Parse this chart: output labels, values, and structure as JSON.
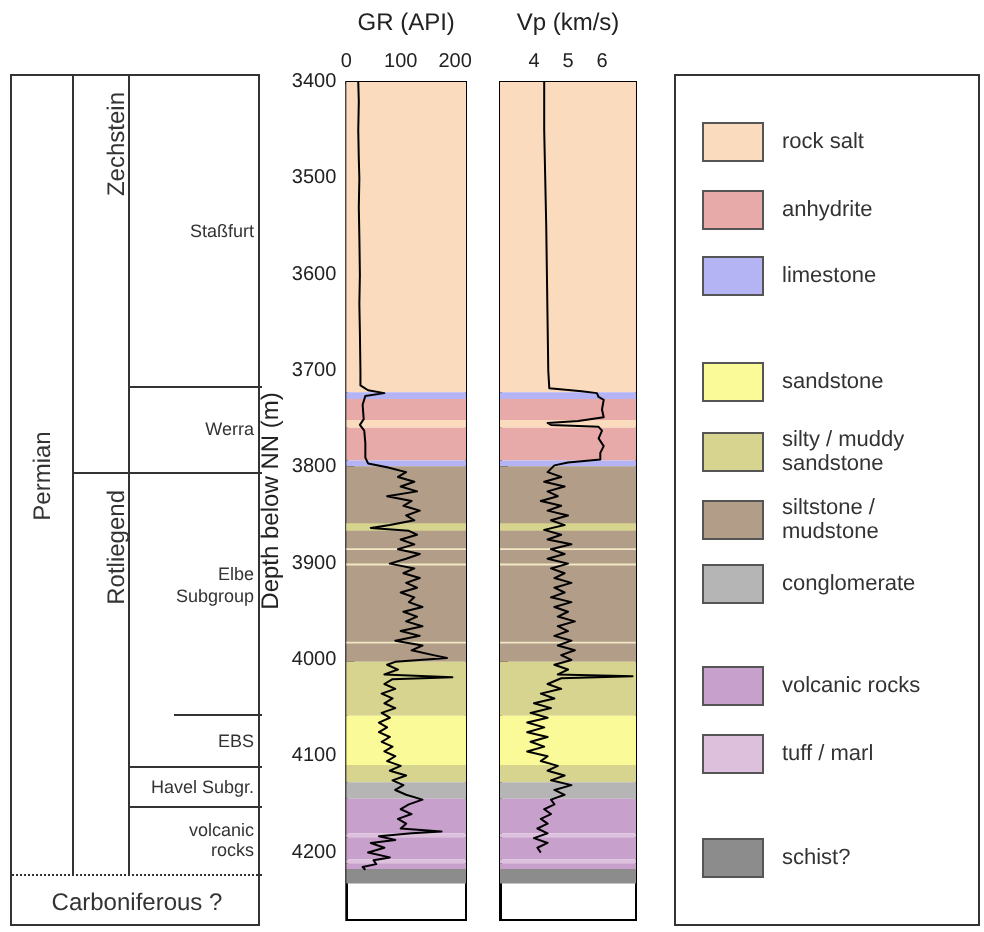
{
  "chart_data": [
    {
      "type": "other",
      "annotations": [
        "Permian",
        "Zechstein",
        "Rotliegend",
        "Staßfurt",
        "Werra",
        "Elbe\nSubgroup",
        "EBS",
        "Havel Subgr.",
        "volcanic\nrocks",
        "Carboniferous ?"
      ]
    },
    {
      "type": "line",
      "orientation": "horizontal",
      "xlabel": "GR (API)",
      "ylabel": "Depth below NN (m)",
      "xlim": [
        0,
        220
      ],
      "xticks": [
        0,
        100,
        200
      ],
      "ylim": [
        4270,
        3400
      ],
      "yticks": [
        3400,
        3500,
        3600,
        3700,
        3800,
        3900,
        4000,
        4100,
        4200
      ],
      "series": [
        {
          "color": "#000000",
          "x": [
            3400,
            3420,
            3450,
            3480,
            3500,
            3530,
            3560,
            3600,
            3630,
            3660,
            3700,
            3715,
            3720,
            3723,
            3726,
            3735,
            3750,
            3756,
            3762,
            3775,
            3790,
            3796,
            3800,
            3805,
            3810,
            3815,
            3820,
            3825,
            3830,
            3835,
            3840,
            3845,
            3850,
            3855,
            3860,
            3863,
            3866,
            3870,
            3875,
            3880,
            3885,
            3890,
            3895,
            3900,
            3905,
            3910,
            3915,
            3920,
            3925,
            3930,
            3935,
            3940,
            3945,
            3950,
            3955,
            3960,
            3965,
            3970,
            3975,
            3980,
            3985,
            3990,
            3995,
            3998,
            4002,
            4005,
            4010,
            4015,
            4018,
            4020,
            4025,
            4030,
            4035,
            4040,
            4045,
            4050,
            4055,
            4060,
            4065,
            4070,
            4075,
            4080,
            4085,
            4090,
            4095,
            4100,
            4105,
            4110,
            4115,
            4120,
            4125,
            4130,
            4135,
            4140,
            4145,
            4150,
            4155,
            4160,
            4165,
            4170,
            4175,
            4178,
            4180,
            4183,
            4187,
            4190,
            4195,
            4200,
            4205,
            4208,
            4212,
            4215,
            4218
          ],
          "values": [
            22,
            23,
            22,
            23,
            24,
            23,
            24,
            25,
            24,
            25,
            26,
            26,
            40,
            70,
            35,
            30,
            32,
            25,
            33,
            35,
            35,
            40,
            75,
            110,
            95,
            125,
            100,
            130,
            75,
            120,
            105,
            135,
            110,
            125,
            80,
            45,
            115,
            130,
            100,
            125,
            95,
            135,
            110,
            80,
            125,
            105,
            135,
            110,
            130,
            100,
            125,
            115,
            140,
            105,
            130,
            110,
            140,
            100,
            135,
            90,
            140,
            120,
            160,
            185,
            90,
            75,
            95,
            70,
            195,
            85,
            70,
            90,
            65,
            85,
            70,
            90,
            65,
            80,
            60,
            75,
            60,
            80,
            65,
            85,
            70,
            90,
            75,
            100,
            80,
            110,
            85,
            105,
            90,
            110,
            140,
            115,
            100,
            120,
            95,
            110,
            100,
            175,
            120,
            60,
            90,
            45,
            70,
            40,
            80,
            50,
            55,
            30,
            35
          ]
        }
      ],
      "bands": [
        {
          "axis": "y",
          "from": 3400,
          "to": 3722,
          "color": "#fbdbbd"
        },
        {
          "axis": "y",
          "from": 3722,
          "to": 3729,
          "color": "#b4b4f4"
        },
        {
          "axis": "y",
          "from": 3729,
          "to": 3751,
          "color": "#e8aaa8"
        },
        {
          "axis": "y",
          "from": 3751,
          "to": 3759,
          "color": "#fbdbbd"
        },
        {
          "axis": "y",
          "from": 3759,
          "to": 3793,
          "color": "#e8aaa8"
        },
        {
          "axis": "y",
          "from": 3793,
          "to": 3799,
          "color": "#b4b4f4"
        },
        {
          "axis": "y",
          "from": 3799,
          "to": 4002,
          "color": "#b19d88"
        },
        {
          "axis": "y",
          "from": 3858,
          "to": 3866,
          "color": "#d6d48e"
        },
        {
          "axis": "y",
          "from": 3884,
          "to": 3886,
          "color": "#f2e9c4"
        },
        {
          "axis": "y",
          "from": 3900,
          "to": 3902,
          "color": "#f2e9c4"
        },
        {
          "axis": "y",
          "from": 3981,
          "to": 3983,
          "color": "#f2e9c4"
        },
        {
          "axis": "y",
          "from": 4002,
          "to": 4058,
          "color": "#d6d48e"
        },
        {
          "axis": "y",
          "from": 4058,
          "to": 4109,
          "color": "#fafa99"
        },
        {
          "axis": "y",
          "from": 4109,
          "to": 4127,
          "color": "#d6d48e"
        },
        {
          "axis": "y",
          "from": 4127,
          "to": 4144,
          "color": "#b5b5b5"
        },
        {
          "axis": "y",
          "from": 4144,
          "to": 4180,
          "color": "#c8a0cc"
        },
        {
          "axis": "y",
          "from": 4180,
          "to": 4184,
          "color": "#dcc0dc"
        },
        {
          "axis": "y",
          "from": 4184,
          "to": 4207,
          "color": "#c8a0cc"
        },
        {
          "axis": "y",
          "from": 4207,
          "to": 4211,
          "color": "#dcc0dc"
        },
        {
          "axis": "y",
          "from": 4211,
          "to": 4217,
          "color": "#c8a0cc"
        },
        {
          "axis": "y",
          "from": 4217,
          "to": 4232,
          "color": "#8c8c8c"
        }
      ]
    },
    {
      "type": "line",
      "orientation": "horizontal",
      "xlabel": "Vp (km/s)",
      "xlim": [
        3,
        7
      ],
      "xticks": [
        4,
        5,
        6
      ],
      "ylim": [
        4270,
        3400
      ],
      "yticks": [
        3400,
        3500,
        3600,
        3700,
        3800,
        3900,
        4000,
        4100,
        4200
      ],
      "tick_labels": "x",
      "series": [
        {
          "color": "#000000",
          "x": [
            3400,
            3450,
            3500,
            3550,
            3600,
            3650,
            3700,
            3718,
            3721,
            3723,
            3727,
            3730,
            3740,
            3748,
            3752,
            3754,
            3756,
            3758,
            3762,
            3770,
            3778,
            3785,
            3792,
            3795,
            3798,
            3805,
            3810,
            3815,
            3820,
            3825,
            3830,
            3835,
            3840,
            3845,
            3850,
            3855,
            3860,
            3865,
            3870,
            3875,
            3880,
            3885,
            3890,
            3895,
            3900,
            3905,
            3910,
            3915,
            3920,
            3925,
            3930,
            3935,
            3940,
            3945,
            3950,
            3955,
            3960,
            3965,
            3970,
            3975,
            3980,
            3985,
            3990,
            3995,
            4000,
            4005,
            4010,
            4015,
            4017,
            4019,
            4025,
            4030,
            4035,
            4040,
            4045,
            4050,
            4055,
            4060,
            4065,
            4070,
            4075,
            4080,
            4085,
            4090,
            4095,
            4100,
            4105,
            4110,
            4115,
            4120,
            4125,
            4130,
            4135,
            4140,
            4145,
            4150,
            4155,
            4160,
            4165,
            4170,
            4175,
            4180,
            4185,
            4190,
            4195,
            4200
          ],
          "values": [
            4.3,
            4.3,
            4.33,
            4.36,
            4.38,
            4.4,
            4.42,
            4.45,
            5.4,
            5.85,
            5.9,
            6.05,
            6.0,
            6.05,
            5.3,
            4.4,
            4.5,
            5.9,
            6.0,
            5.9,
            6.05,
            5.95,
            5.95,
            5.0,
            4.6,
            4.4,
            4.8,
            4.3,
            4.9,
            4.4,
            4.7,
            4.2,
            4.8,
            4.4,
            5.0,
            4.5,
            4.9,
            4.3,
            4.8,
            4.4,
            5.1,
            4.5,
            4.9,
            4.4,
            5.0,
            4.5,
            4.9,
            4.6,
            5.1,
            4.6,
            4.9,
            4.5,
            5.1,
            4.6,
            5.0,
            4.7,
            5.2,
            4.7,
            5.0,
            4.6,
            5.1,
            4.7,
            5.2,
            4.8,
            5.1,
            4.6,
            5.0,
            4.7,
            6.9,
            4.8,
            4.4,
            4.8,
            4.2,
            4.6,
            4.0,
            4.5,
            3.9,
            4.4,
            3.8,
            4.3,
            3.8,
            4.4,
            3.9,
            4.3,
            3.8,
            4.4,
            4.2,
            4.7,
            4.4,
            4.9,
            4.5,
            5.1,
            4.6,
            4.9,
            4.5,
            4.6,
            4.3,
            4.5,
            4.2,
            4.4,
            4.1,
            4.4,
            4.0,
            4.4,
            4.1,
            4.2
          ]
        }
      ],
      "bands": [
        {
          "axis": "y",
          "from": 3400,
          "to": 3722,
          "color": "#fbdbbd"
        },
        {
          "axis": "y",
          "from": 3722,
          "to": 3729,
          "color": "#b4b4f4"
        },
        {
          "axis": "y",
          "from": 3729,
          "to": 3751,
          "color": "#e8aaa8"
        },
        {
          "axis": "y",
          "from": 3751,
          "to": 3759,
          "color": "#fbdbbd"
        },
        {
          "axis": "y",
          "from": 3759,
          "to": 3793,
          "color": "#e8aaa8"
        },
        {
          "axis": "y",
          "from": 3793,
          "to": 3799,
          "color": "#b4b4f4"
        },
        {
          "axis": "y",
          "from": 3799,
          "to": 4002,
          "color": "#b19d88"
        },
        {
          "axis": "y",
          "from": 3858,
          "to": 3866,
          "color": "#d6d48e"
        },
        {
          "axis": "y",
          "from": 3884,
          "to": 3886,
          "color": "#f2e9c4"
        },
        {
          "axis": "y",
          "from": 3900,
          "to": 3902,
          "color": "#f2e9c4"
        },
        {
          "axis": "y",
          "from": 3981,
          "to": 3983,
          "color": "#f2e9c4"
        },
        {
          "axis": "y",
          "from": 4002,
          "to": 4058,
          "color": "#d6d48e"
        },
        {
          "axis": "y",
          "from": 4058,
          "to": 4109,
          "color": "#fafa99"
        },
        {
          "axis": "y",
          "from": 4109,
          "to": 4127,
          "color": "#d6d48e"
        },
        {
          "axis": "y",
          "from": 4127,
          "to": 4144,
          "color": "#b5b5b5"
        },
        {
          "axis": "y",
          "from": 4144,
          "to": 4180,
          "color": "#c8a0cc"
        },
        {
          "axis": "y",
          "from": 4180,
          "to": 4184,
          "color": "#dcc0dc"
        },
        {
          "axis": "y",
          "from": 4184,
          "to": 4207,
          "color": "#c8a0cc"
        },
        {
          "axis": "y",
          "from": 4207,
          "to": 4211,
          "color": "#dcc0dc"
        },
        {
          "axis": "y",
          "from": 4211,
          "to": 4217,
          "color": "#c8a0cc"
        },
        {
          "axis": "y",
          "from": 4217,
          "to": 4232,
          "color": "#8c8c8c"
        }
      ]
    },
    {
      "type": "other",
      "categories": [
        "rock salt",
        "anhydrite",
        "limestone",
        "sandstone",
        "silty / muddy\nsandstone",
        "siltstone /\nmudstone",
        "conglomerate",
        "volcanic rocks",
        "tuff / marl",
        "schist?"
      ],
      "colors": [
        "#fbdbbd",
        "#e8aaa8",
        "#b4b4f4",
        "#fafa99",
        "#d6d48e",
        "#b19d88",
        "#b5b5b5",
        "#c8a0cc",
        "#dcc0dc",
        "#8c8c8c"
      ]
    }
  ]
}
